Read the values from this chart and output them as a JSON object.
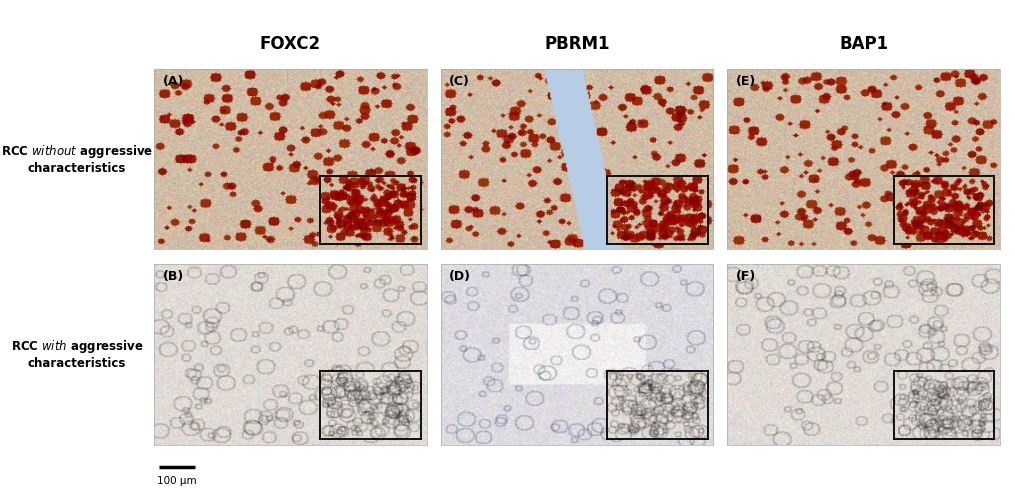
{
  "col_titles": [
    "FOXC2",
    "PBRM1",
    "BAP1"
  ],
  "row_labels_top": "RCC $\\mathit{without}$ aggressive\ncharacteristics",
  "row_labels_bot": "RCC $\\mathit{with}$ aggressive\ncharacteristics",
  "panel_labels_row0": [
    "(A)",
    "(C)",
    "(E)"
  ],
  "panel_labels_row1": [
    "(B)",
    "(D)",
    "(F)"
  ],
  "scale_bar_text": "100 μm",
  "bg_color": "#ffffff"
}
